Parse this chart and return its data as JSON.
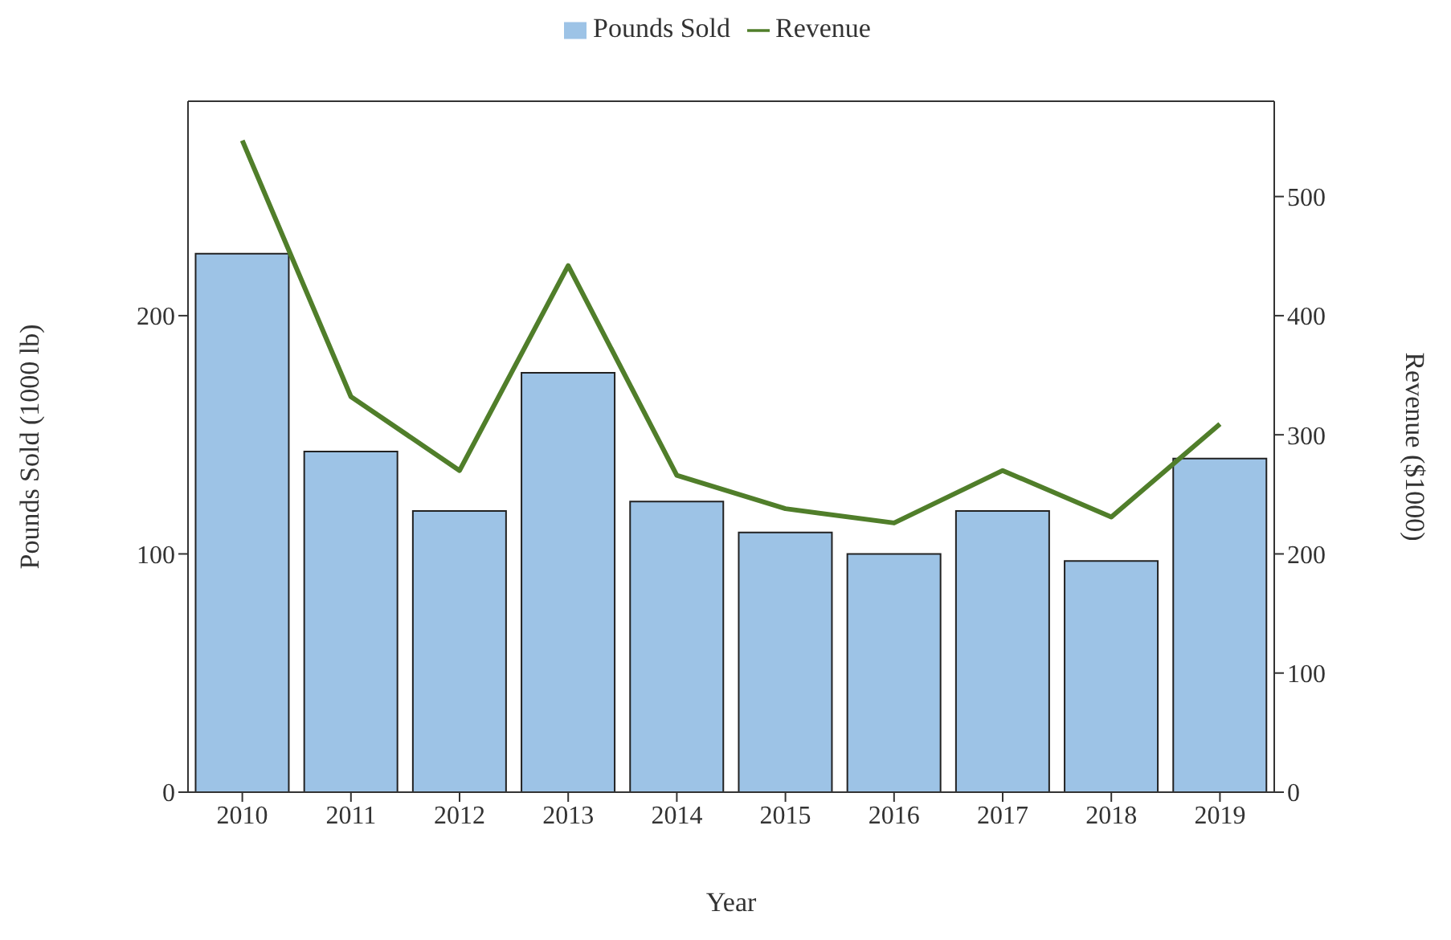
{
  "chart_data": {
    "type": "bar",
    "xlabel": "Year",
    "ylabel": "Pounds Sold (1000 lb)",
    "y2label": "Revenue ($1000)",
    "categories": [
      "2010",
      "2011",
      "2012",
      "2013",
      "2014",
      "2015",
      "2016",
      "2017",
      "2018",
      "2019"
    ],
    "series": [
      {
        "name": "Pounds Sold",
        "color": "#9dc3e6",
        "values": [
          226,
          143,
          118,
          176,
          122,
          109,
          100,
          118,
          97,
          140
        ]
      },
      {
        "name": "Revenue",
        "type": "line",
        "axis": "y2",
        "color": "#507e2a",
        "values": [
          547,
          332,
          270,
          442,
          266,
          238,
          226,
          270,
          231,
          309
        ]
      }
    ],
    "ylim": [
      0,
      290
    ],
    "yticks": [
      0,
      100,
      200
    ],
    "y2lim": [
      0,
      580
    ],
    "y2ticks": [
      0,
      100,
      200,
      300,
      400,
      500
    ],
    "legend": "top",
    "grid": false,
    "marker": "none",
    "line_style": "solid"
  }
}
